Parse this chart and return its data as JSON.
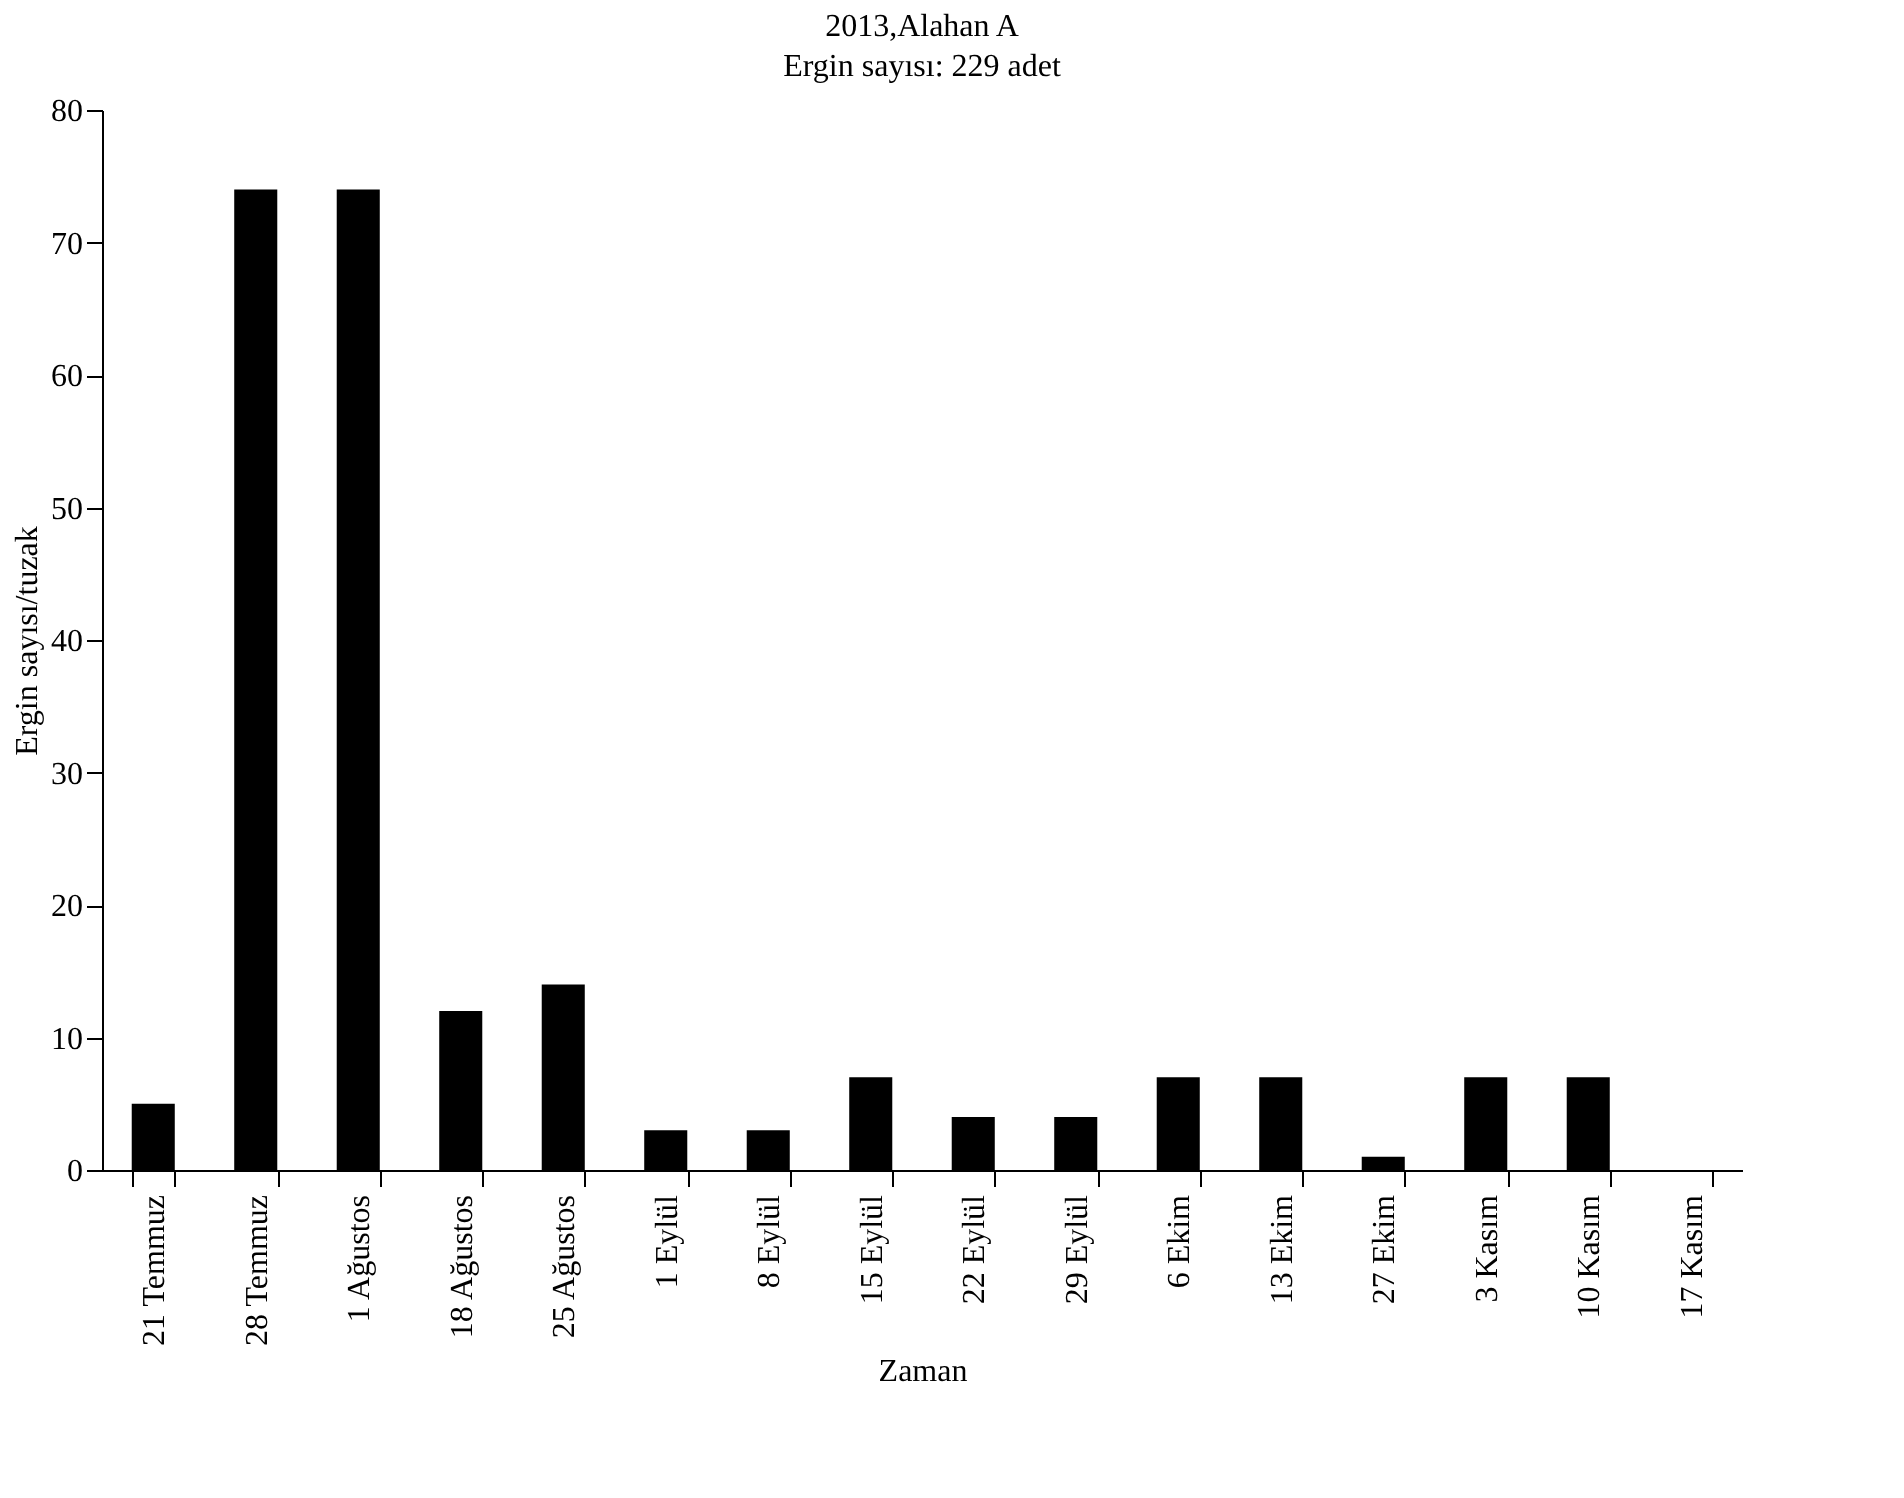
{
  "chart_data": {
    "type": "bar",
    "title": "2013,Alahan A",
    "subtitle": "Ergin sayısı: 229 adet",
    "xlabel": "Zaman",
    "ylabel": "Ergin sayısı/tuzak",
    "categories": [
      "21 Temmuz",
      "28 Temmuz",
      "1 Ağustos",
      "18 Ağustos",
      "25 Ağustos",
      "1 Eylül",
      "8 Eylül",
      "15 Eylül",
      "22 Eylül",
      "29 Eylül",
      "6 Ekim",
      "13 Ekim",
      "27 Ekim",
      "3 Kasım",
      "10 Kasım",
      "17 Kasım"
    ],
    "values": [
      5,
      74,
      74,
      12,
      14,
      3,
      3,
      7,
      4,
      4,
      7,
      7,
      1,
      7,
      7,
      0
    ],
    "color": "#000000",
    "ylim": [
      0,
      80
    ],
    "yticks": [
      0,
      10,
      20,
      30,
      40,
      50,
      60,
      70,
      80
    ],
    "grid": false
  }
}
